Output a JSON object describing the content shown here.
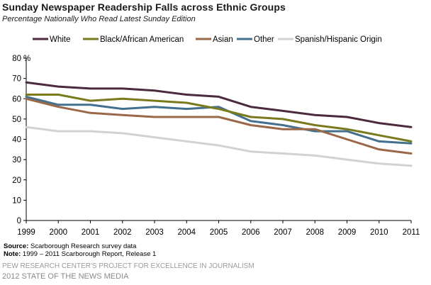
{
  "title": "Sunday Newspaper  Readership  Falls across  Ethnic Groups",
  "subtitle": "Percentage Nationally Who Read Latest Sunday Edition",
  "source_label": "Source:",
  "source_text": "Scarborough Research survey data",
  "note_label": "Note:",
  "note_text": "1999 – 2011 Scarborough Report, Release 1",
  "org_line": "PEW RESEARCH CENTER'S PROJECT FOR EXCELLENCE IN JOURNALISM",
  "org_line2": "2012 STATE OF THE NEWS MEDIA",
  "chart_data": {
    "type": "line",
    "x": [
      "1999",
      "2000",
      "2001",
      "2002",
      "2003",
      "2004",
      "2005",
      "2006",
      "2007",
      "2008",
      "2009",
      "2010",
      "2011"
    ],
    "y_ticks": [
      "0",
      "10",
      "20",
      "30",
      "40",
      "50",
      "60",
      "70",
      "80"
    ],
    "y_unit": "%",
    "ylim": [
      0,
      80
    ],
    "grid": false,
    "legend_position": "top",
    "series": [
      {
        "name": "White",
        "color": "#4b2a3d",
        "values": [
          68,
          66,
          65,
          65,
          64,
          62,
          61,
          56,
          54,
          52,
          51,
          48,
          46
        ]
      },
      {
        "name": "Black/African American",
        "color": "#7a7a1c",
        "values": [
          62,
          62,
          59,
          60,
          59,
          58,
          55,
          51,
          50,
          47,
          45,
          42,
          39
        ]
      },
      {
        "name": "Asian",
        "color": "#9a6848",
        "values": [
          60,
          56,
          53,
          52,
          51,
          51,
          51,
          47,
          45,
          45,
          40,
          35,
          33
        ]
      },
      {
        "name": "Other",
        "color": "#43708f",
        "values": [
          61,
          57,
          57,
          55,
          56,
          55,
          56,
          49,
          47,
          44,
          44,
          39,
          38
        ]
      },
      {
        "name": "Spanish/Hispanic Origin",
        "color": "#d2d2d2",
        "values": [
          46,
          44,
          44,
          43,
          41,
          39,
          37,
          34,
          33,
          32,
          30,
          28,
          27
        ]
      }
    ]
  }
}
